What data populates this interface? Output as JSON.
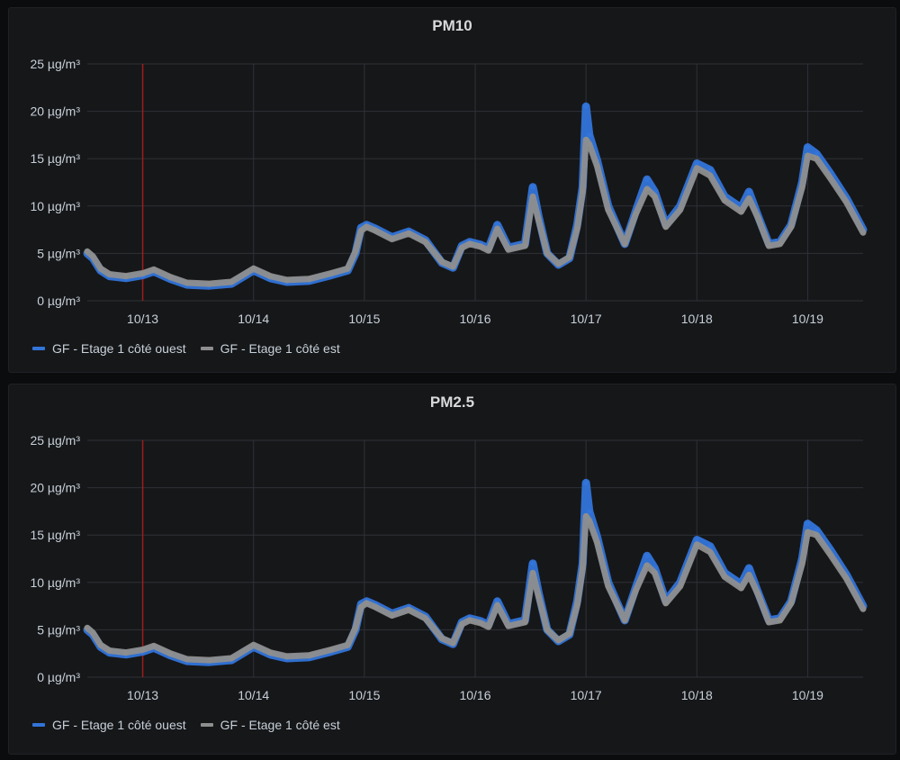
{
  "chart_data": [
    {
      "type": "line",
      "title": "PM10",
      "unit": "µg/m³",
      "ylim": [
        0,
        25
      ],
      "yticks": [
        0,
        5,
        10,
        15,
        20,
        25
      ],
      "ytick_labels": [
        "0 µg/m³",
        "5 µg/m³",
        "10 µg/m³",
        "15 µg/m³",
        "20 µg/m³",
        "25 µg/m³"
      ],
      "xlim": [
        12.5,
        19.5
      ],
      "xticks": [
        13,
        14,
        15,
        16,
        17,
        18,
        19
      ],
      "xtick_labels": [
        "10/13",
        "10/14",
        "10/15",
        "10/16",
        "10/17",
        "10/18",
        "10/19"
      ],
      "annotation_x": 13.0,
      "grid": true,
      "legend": "bottom-left",
      "series": [
        {
          "name": "GF - Etage 1 côté ouest",
          "color": "#3274d9",
          "x": [
            12.5,
            12.55,
            12.62,
            12.7,
            12.85,
            13.0,
            13.1,
            13.25,
            13.4,
            13.6,
            13.8,
            14.0,
            14.15,
            14.3,
            14.5,
            14.7,
            14.85,
            14.92,
            14.97,
            15.02,
            15.1,
            15.25,
            15.4,
            15.55,
            15.7,
            15.8,
            15.88,
            15.95,
            16.05,
            16.12,
            16.2,
            16.3,
            16.45,
            16.52,
            16.57,
            16.65,
            16.75,
            16.85,
            16.92,
            16.97,
            17.0,
            17.03,
            17.1,
            17.2,
            17.35,
            17.45,
            17.55,
            17.62,
            17.72,
            17.85,
            18.0,
            18.12,
            18.25,
            18.4,
            18.47,
            18.55,
            18.65,
            18.75,
            18.85,
            18.95,
            19.0,
            19.08,
            19.2,
            19.35,
            19.5
          ],
          "values": [
            5.0,
            4.5,
            3.2,
            2.6,
            2.4,
            2.7,
            3.1,
            2.3,
            1.7,
            1.6,
            1.8,
            3.2,
            2.4,
            2.0,
            2.1,
            2.7,
            3.2,
            5.0,
            7.7,
            8.0,
            7.6,
            6.7,
            7.3,
            6.4,
            4.0,
            3.5,
            5.8,
            6.2,
            5.9,
            5.5,
            8.0,
            5.6,
            6.0,
            12.0,
            9.0,
            5.0,
            3.8,
            4.5,
            8.0,
            12.0,
            20.5,
            17.5,
            14.8,
            10.0,
            6.0,
            9.5,
            12.8,
            11.5,
            8.0,
            10.0,
            14.5,
            13.8,
            11.0,
            9.8,
            11.5,
            9.0,
            6.0,
            6.2,
            8.0,
            12.5,
            16.2,
            15.5,
            13.5,
            10.8,
            7.5
          ]
        },
        {
          "name": "GF - Etage 1 côté est",
          "color": "#8e8e8e",
          "x": [
            12.5,
            12.55,
            12.62,
            12.7,
            12.85,
            13.0,
            13.1,
            13.25,
            13.4,
            13.6,
            13.8,
            14.0,
            14.15,
            14.3,
            14.5,
            14.7,
            14.85,
            14.92,
            14.97,
            15.02,
            15.1,
            15.25,
            15.4,
            15.55,
            15.7,
            15.8,
            15.88,
            15.95,
            16.05,
            16.12,
            16.2,
            16.3,
            16.45,
            16.52,
            16.57,
            16.65,
            16.75,
            16.85,
            16.92,
            16.97,
            17.0,
            17.03,
            17.1,
            17.2,
            17.35,
            17.45,
            17.55,
            17.62,
            17.72,
            17.85,
            18.0,
            18.12,
            18.25,
            18.4,
            18.47,
            18.55,
            18.65,
            18.75,
            18.85,
            18.95,
            19.0,
            19.08,
            19.2,
            19.35,
            19.5
          ],
          "values": [
            5.2,
            4.7,
            3.4,
            2.8,
            2.6,
            2.9,
            3.3,
            2.5,
            1.9,
            1.8,
            2.0,
            3.4,
            2.6,
            2.2,
            2.3,
            2.9,
            3.4,
            5.2,
            7.4,
            7.8,
            7.4,
            6.5,
            7.1,
            6.2,
            4.1,
            3.6,
            5.6,
            6.0,
            5.7,
            5.3,
            7.6,
            5.4,
            5.8,
            11.0,
            8.6,
            5.0,
            3.9,
            4.6,
            7.6,
            11.5,
            17.0,
            16.5,
            14.2,
            9.6,
            6.0,
            9.2,
            11.8,
            11.0,
            7.8,
            9.6,
            14.0,
            13.2,
            10.6,
            9.4,
            10.8,
            8.8,
            5.8,
            6.0,
            7.8,
            12.0,
            15.3,
            15.0,
            13.0,
            10.4,
            7.2
          ]
        }
      ]
    },
    {
      "type": "line",
      "title": "PM2.5",
      "unit": "µg/m³",
      "ylim": [
        0,
        25
      ],
      "yticks": [
        0,
        5,
        10,
        15,
        20,
        25
      ],
      "ytick_labels": [
        "0 µg/m³",
        "5 µg/m³",
        "10 µg/m³",
        "15 µg/m³",
        "20 µg/m³",
        "25 µg/m³"
      ],
      "xlim": [
        12.5,
        19.5
      ],
      "xticks": [
        13,
        14,
        15,
        16,
        17,
        18,
        19
      ],
      "xtick_labels": [
        "10/13",
        "10/14",
        "10/15",
        "10/16",
        "10/17",
        "10/18",
        "10/19"
      ],
      "annotation_x": 13.0,
      "grid": true,
      "legend": "bottom-left",
      "series": [
        {
          "name": "GF - Etage 1 côté ouest",
          "color": "#3274d9",
          "x": [
            12.5,
            12.55,
            12.62,
            12.7,
            12.85,
            13.0,
            13.1,
            13.25,
            13.4,
            13.6,
            13.8,
            14.0,
            14.15,
            14.3,
            14.5,
            14.7,
            14.85,
            14.92,
            14.97,
            15.02,
            15.1,
            15.25,
            15.4,
            15.55,
            15.7,
            15.8,
            15.88,
            15.95,
            16.05,
            16.12,
            16.2,
            16.3,
            16.45,
            16.52,
            16.57,
            16.65,
            16.75,
            16.85,
            16.92,
            16.97,
            17.0,
            17.03,
            17.1,
            17.2,
            17.35,
            17.45,
            17.55,
            17.62,
            17.72,
            17.85,
            18.0,
            18.12,
            18.25,
            18.4,
            18.47,
            18.55,
            18.65,
            18.75,
            18.85,
            18.95,
            19.0,
            19.08,
            19.2,
            19.35,
            19.5
          ],
          "values": [
            5.0,
            4.5,
            3.2,
            2.6,
            2.4,
            2.7,
            3.1,
            2.3,
            1.7,
            1.6,
            1.8,
            3.2,
            2.4,
            2.0,
            2.1,
            2.7,
            3.2,
            5.0,
            7.7,
            8.0,
            7.6,
            6.7,
            7.3,
            6.4,
            4.0,
            3.5,
            5.8,
            6.2,
            5.9,
            5.5,
            8.0,
            5.6,
            6.0,
            12.0,
            9.0,
            5.0,
            3.8,
            4.5,
            8.0,
            12.0,
            20.5,
            17.5,
            14.8,
            10.0,
            6.0,
            9.5,
            12.8,
            11.5,
            8.0,
            10.0,
            14.5,
            13.8,
            11.0,
            9.8,
            11.5,
            9.0,
            6.0,
            6.2,
            8.0,
            12.5,
            16.2,
            15.5,
            13.5,
            10.8,
            7.5
          ]
        },
        {
          "name": "GF - Etage 1 côté est",
          "color": "#8e8e8e",
          "x": [
            12.5,
            12.55,
            12.62,
            12.7,
            12.85,
            13.0,
            13.1,
            13.25,
            13.4,
            13.6,
            13.8,
            14.0,
            14.15,
            14.3,
            14.5,
            14.7,
            14.85,
            14.92,
            14.97,
            15.02,
            15.1,
            15.25,
            15.4,
            15.55,
            15.7,
            15.8,
            15.88,
            15.95,
            16.05,
            16.12,
            16.2,
            16.3,
            16.45,
            16.52,
            16.57,
            16.65,
            16.75,
            16.85,
            16.92,
            16.97,
            17.0,
            17.03,
            17.1,
            17.2,
            17.35,
            17.45,
            17.55,
            17.62,
            17.72,
            17.85,
            18.0,
            18.12,
            18.25,
            18.4,
            18.47,
            18.55,
            18.65,
            18.75,
            18.85,
            18.95,
            19.0,
            19.08,
            19.2,
            19.35,
            19.5
          ],
          "values": [
            5.2,
            4.7,
            3.4,
            2.8,
            2.6,
            2.9,
            3.3,
            2.5,
            1.9,
            1.8,
            2.0,
            3.4,
            2.6,
            2.2,
            2.3,
            2.9,
            3.4,
            5.2,
            7.4,
            7.8,
            7.4,
            6.5,
            7.1,
            6.2,
            4.1,
            3.6,
            5.6,
            6.0,
            5.7,
            5.3,
            7.6,
            5.4,
            5.8,
            11.0,
            8.6,
            5.0,
            3.9,
            4.6,
            7.6,
            11.5,
            17.0,
            16.5,
            14.2,
            9.6,
            6.0,
            9.2,
            11.8,
            11.0,
            7.8,
            9.6,
            14.0,
            13.2,
            10.6,
            9.4,
            10.8,
            8.8,
            5.8,
            6.0,
            7.8,
            12.0,
            15.3,
            15.0,
            13.0,
            10.4,
            7.2
          ]
        }
      ]
    }
  ]
}
